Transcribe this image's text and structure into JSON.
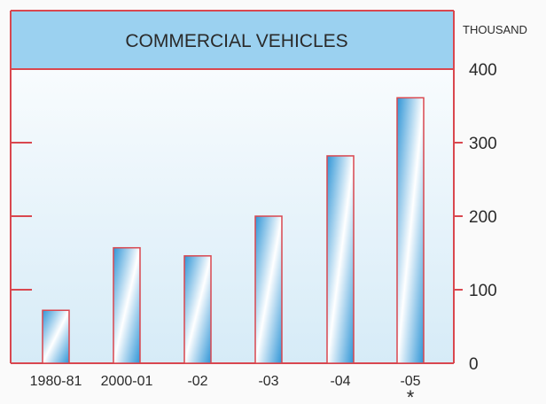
{
  "chart_data": {
    "type": "bar",
    "title": "COMMERCIAL VEHICLES",
    "unit_label": "THOUSAND",
    "categories": [
      "1980-81",
      "2000-01",
      "-02",
      "-03",
      "-04",
      "-05"
    ],
    "values": [
      72,
      157,
      146,
      200,
      282,
      361
    ],
    "category_markers": [
      "",
      "",
      "",
      "",
      "",
      "*"
    ],
    "y_ticks": [
      0,
      100,
      200,
      300,
      400
    ],
    "ylim": [
      0,
      400
    ],
    "grid": false,
    "colors": {
      "frame": "#d9474f",
      "bar_fill": "#2f95d6",
      "bar_highlight": "#ffffff",
      "panel_top": "#ffffff",
      "panel_bottom": "#d6ebf7",
      "title_band": "#9bd1f0",
      "text": "#2a2a2a"
    }
  }
}
